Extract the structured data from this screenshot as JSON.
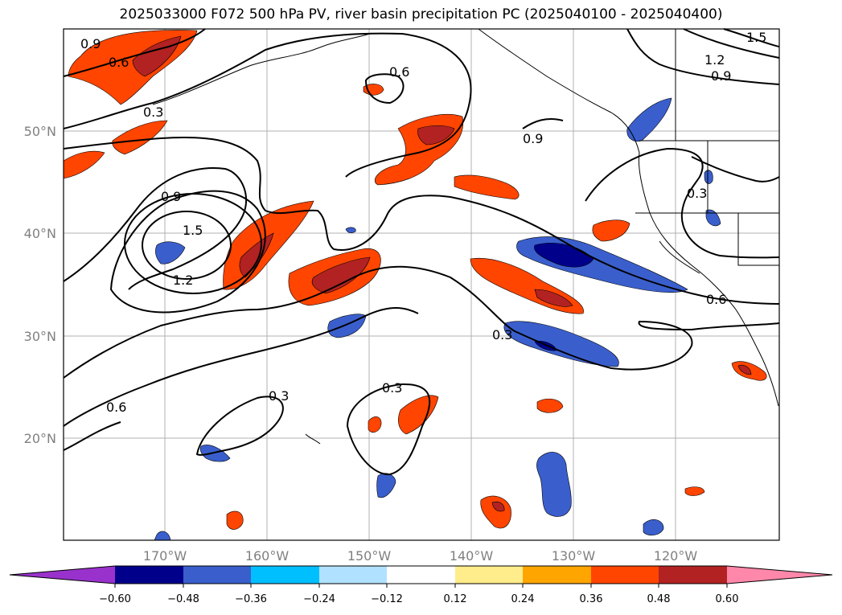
{
  "title": "2025033000 F072 500 hPa PV, river basin precipitation PC (2025040100 - 2025040400)",
  "map": {
    "lat_labels": [
      "50°N",
      "40°N",
      "30°N",
      "20°N"
    ],
    "lon_labels": [
      "170°W",
      "160°W",
      "150°W",
      "140°W",
      "130°W",
      "120°W"
    ],
    "contour_labels": [
      "0.9",
      "0.6",
      "0.3",
      "0.6",
      "0.9",
      "1.5",
      "1.2",
      "0.6",
      "0.3",
      "0.3",
      "0.9",
      "1.5",
      "1.2",
      "0.9",
      "0.3",
      "0.6",
      "0.3"
    ],
    "contour_color": "#000000"
  },
  "colorbar": {
    "ticks": [
      "−0.60",
      "−0.48",
      "−0.36",
      "−0.24",
      "−0.12",
      "0.12",
      "0.24",
      "0.36",
      "0.48",
      "0.60"
    ],
    "colors": [
      "#9932cc",
      "#00008b",
      "#3a5fcd",
      "#00bfff",
      "#b0e2ff",
      "#ffffff",
      "#ffec8b",
      "#ffa500",
      "#ff4500",
      "#b22222",
      "#ff88aa"
    ]
  }
}
